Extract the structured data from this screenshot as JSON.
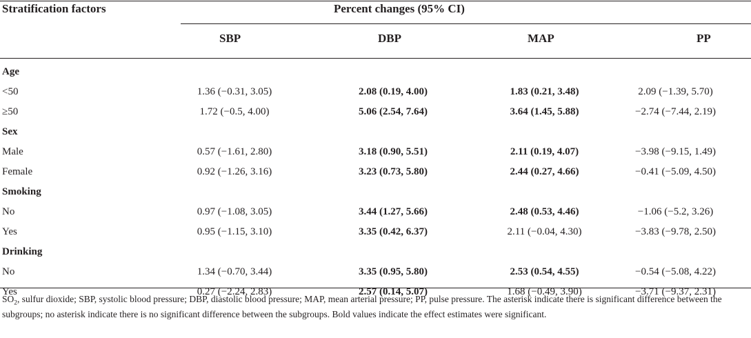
{
  "header": {
    "stratification": "Stratification factors",
    "percent_changes": "Percent changes (95% CI)",
    "columns": [
      "SBP",
      "DBP",
      "MAP",
      "PP"
    ]
  },
  "groups": [
    {
      "name": "Age",
      "rows": [
        {
          "label": "<50",
          "sbp": "1.36 (−0.31, 3.05)",
          "dbp": "2.08 (0.19, 4.00)",
          "map": "1.83 (0.21, 3.48)",
          "pp": "2.09 (−1.39, 5.70)"
        },
        {
          "label": "≥50",
          "sbp": "1.72 (−0.5, 4.00)",
          "dbp": "5.06 (2.54, 7.64)",
          "map": "3.64 (1.45, 5.88)",
          "pp": "−2.74 (−7.44, 2.19)"
        }
      ]
    },
    {
      "name": "Sex",
      "rows": [
        {
          "label": "Male",
          "sbp": "0.57 (−1.61, 2.80)",
          "dbp": "3.18 (0.90, 5.51)",
          "map": "2.11 (0.19, 4.07)",
          "pp": "−3.98 (−9.15, 1.49)"
        },
        {
          "label": "Female",
          "sbp": "0.92 (−1.26, 3.16)",
          "dbp": "3.23 (0.73, 5.80)",
          "map": "2.44 (0.27, 4.66)",
          "pp": "−0.41 (−5.09, 4.50)"
        }
      ]
    },
    {
      "name": "Smoking",
      "rows": [
        {
          "label": "No",
          "sbp": "0.97 (−1.08, 3.05)",
          "dbp": "3.44 (1.27, 5.66)",
          "map": "2.48 (0.53, 4.46)",
          "pp": "−1.06 (−5.2, 3.26)"
        },
        {
          "label": "Yes",
          "sbp": "0.95 (−1.15, 3.10)",
          "dbp": "3.35 (0.42, 6.37)",
          "map": "2.11 (−0.04, 4.30)",
          "pp": "−3.83 (−9.78, 2.50)"
        }
      ]
    },
    {
      "name": "Drinking",
      "rows": [
        {
          "label": "No",
          "sbp": "1.34 (−0.70, 3.44)",
          "dbp": "3.35 (0.95, 5.80)",
          "map": "2.53 (0.54, 4.55)",
          "pp": "−0.54 (−5.08, 4.22)"
        },
        {
          "label": "Yes",
          "sbp": "0.27 (−2.24, 2.83)",
          "dbp": "2.57 (0.14, 5.07)",
          "map": "1.68 (−0.49, 3.90)",
          "pp": "−3.71 (−9.37, 2.31)"
        }
      ]
    }
  ],
  "footnote": {
    "so2_prefix": "SO",
    "so2_sub": "2",
    "text": ", sulfur dioxide; SBP, systolic blood pressure; DBP, diastolic blood pressure; MAP, mean arterial pressure; PP, pulse pressure. The asterisk indicate there is significant difference between the subgroups; no asterisk indicate there is no significant difference between the subgroups. Bold values indicate the effect estimates were significant."
  }
}
